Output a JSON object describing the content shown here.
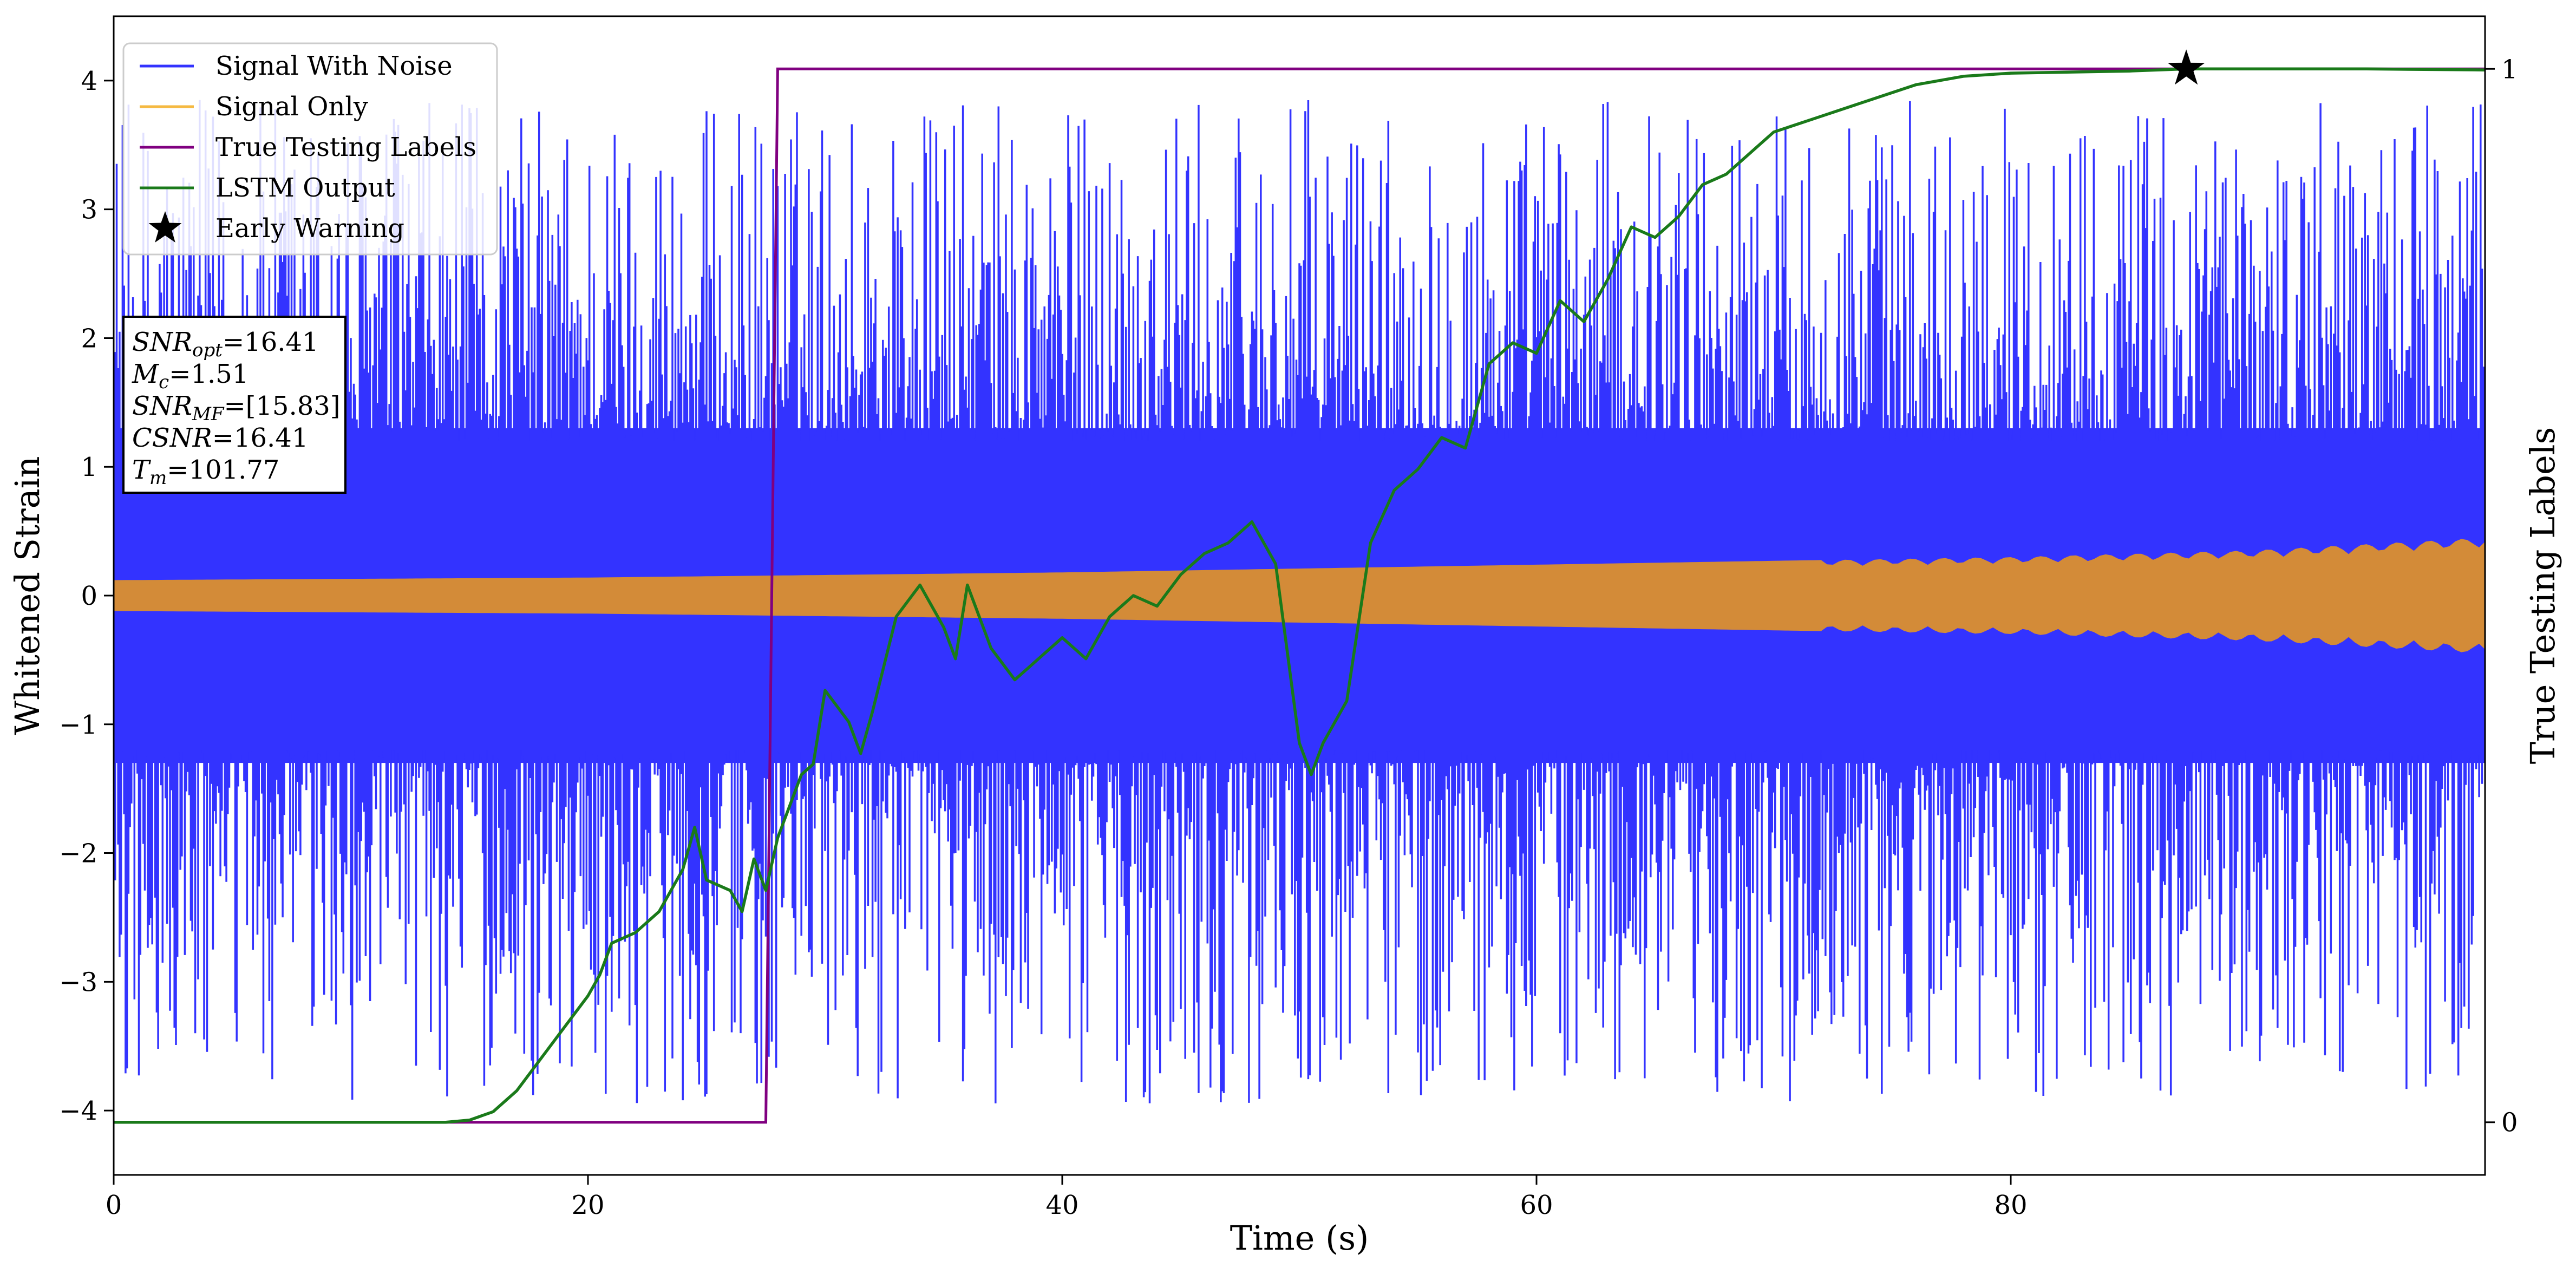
{
  "chart_data": {
    "type": "line",
    "xlabel": "Time (s)",
    "ylabel": "Whitened Strain",
    "y2label": "True Testing Labels",
    "xlim": [
      0,
      100
    ],
    "ylim": [
      -4.5,
      4.5
    ],
    "y2lim": [
      -0.05,
      1.05
    ],
    "x_ticks": [
      0,
      20,
      40,
      60,
      80
    ],
    "x_tick_labels": [
      "0",
      "20",
      "40",
      "60",
      "80"
    ],
    "y_ticks": [
      -4,
      -3,
      -2,
      -1,
      0,
      1,
      2,
      3,
      4
    ],
    "y_tick_labels": [
      "−4",
      "−3",
      "−2",
      "−1",
      "0",
      "1",
      "2",
      "3",
      "4"
    ],
    "y2_ticks": [
      0,
      1
    ],
    "y2_tick_labels": [
      "0",
      "1"
    ],
    "grid": false,
    "legend_position": "top-left",
    "legend": [
      {
        "label": "Signal With Noise",
        "color": "#3333ff",
        "marker": "line"
      },
      {
        "label": "Signal Only",
        "color": "#f5b942",
        "marker": "line"
      },
      {
        "label": "True Testing Labels",
        "color": "#800080",
        "marker": "line"
      },
      {
        "label": "LSTM Output",
        "color": "#1a7a1a",
        "marker": "line"
      },
      {
        "label": "Early Warning",
        "color": "#000000",
        "marker": "star"
      }
    ],
    "annotation_box": [
      {
        "main": "SNR",
        "sub": "opt",
        "rest": "=16.41"
      },
      {
        "main": "M",
        "sub": "c",
        "rest": "=1.51"
      },
      {
        "main": "SNR",
        "sub": "MF",
        "rest": "=[15.83]"
      },
      {
        "main": "CSNR",
        "sub": "",
        "rest": "=16.41"
      },
      {
        "main": "T",
        "sub": "m",
        "rest": "=101.77"
      }
    ],
    "series": [
      {
        "name": "Signal With Noise",
        "axis": "left",
        "style": "dense noise band",
        "color": "#3333ff",
        "core_band": [
          -1.3,
          1.3
        ],
        "spike_range": [
          -4.05,
          3.95
        ]
      },
      {
        "name": "Signal Only",
        "axis": "left",
        "style": "oscillation envelope",
        "color": "#d38b38",
        "envelope_x": [
          0,
          20,
          40,
          60,
          80,
          90,
          100
        ],
        "envelope_amplitude": [
          0.12,
          0.14,
          0.18,
          0.24,
          0.3,
          0.35,
          0.45
        ]
      },
      {
        "name": "True Testing Labels",
        "axis": "right",
        "color": "#800080",
        "x": [
          0,
          27.5,
          28.0,
          100
        ],
        "y": [
          0,
          0,
          1,
          1
        ]
      },
      {
        "name": "LSTM Output",
        "axis": "right",
        "color": "#1a7a1a",
        "x": [
          0,
          14,
          15,
          16,
          17,
          18,
          19,
          20,
          20.5,
          21,
          22,
          23,
          24,
          24.5,
          25,
          26,
          26.5,
          27,
          27.5,
          28,
          28.5,
          29,
          29.5,
          30,
          31,
          31.5,
          32,
          33,
          34,
          35,
          35.5,
          36,
          37,
          38,
          39,
          40,
          41,
          42,
          43,
          44,
          45,
          46,
          47,
          48,
          49,
          50,
          50.5,
          51,
          52,
          53,
          54,
          55,
          56,
          57,
          58,
          59,
          60,
          61,
          62,
          63,
          64,
          65,
          66,
          67,
          68,
          69,
          70,
          72,
          74,
          76,
          78,
          80,
          85,
          87.4,
          90,
          95,
          100
        ],
        "y": [
          0,
          0,
          0.002,
          0.01,
          0.03,
          0.06,
          0.09,
          0.12,
          0.14,
          0.17,
          0.18,
          0.2,
          0.24,
          0.28,
          0.23,
          0.22,
          0.2,
          0.25,
          0.22,
          0.27,
          0.3,
          0.33,
          0.34,
          0.41,
          0.38,
          0.35,
          0.39,
          0.48,
          0.51,
          0.47,
          0.44,
          0.51,
          0.45,
          0.42,
          0.44,
          0.46,
          0.44,
          0.48,
          0.5,
          0.49,
          0.52,
          0.54,
          0.55,
          0.57,
          0.53,
          0.36,
          0.33,
          0.36,
          0.4,
          0.55,
          0.6,
          0.62,
          0.65,
          0.64,
          0.72,
          0.74,
          0.73,
          0.78,
          0.76,
          0.8,
          0.85,
          0.84,
          0.86,
          0.89,
          0.9,
          0.92,
          0.94,
          0.955,
          0.97,
          0.985,
          0.993,
          0.996,
          0.998,
          1.0,
          1.0,
          1.0,
          0.999
        ]
      },
      {
        "name": "Early Warning",
        "axis": "right",
        "color": "#000000",
        "marker": "star",
        "x": [
          87.4
        ],
        "y": [
          1.0
        ]
      }
    ]
  }
}
